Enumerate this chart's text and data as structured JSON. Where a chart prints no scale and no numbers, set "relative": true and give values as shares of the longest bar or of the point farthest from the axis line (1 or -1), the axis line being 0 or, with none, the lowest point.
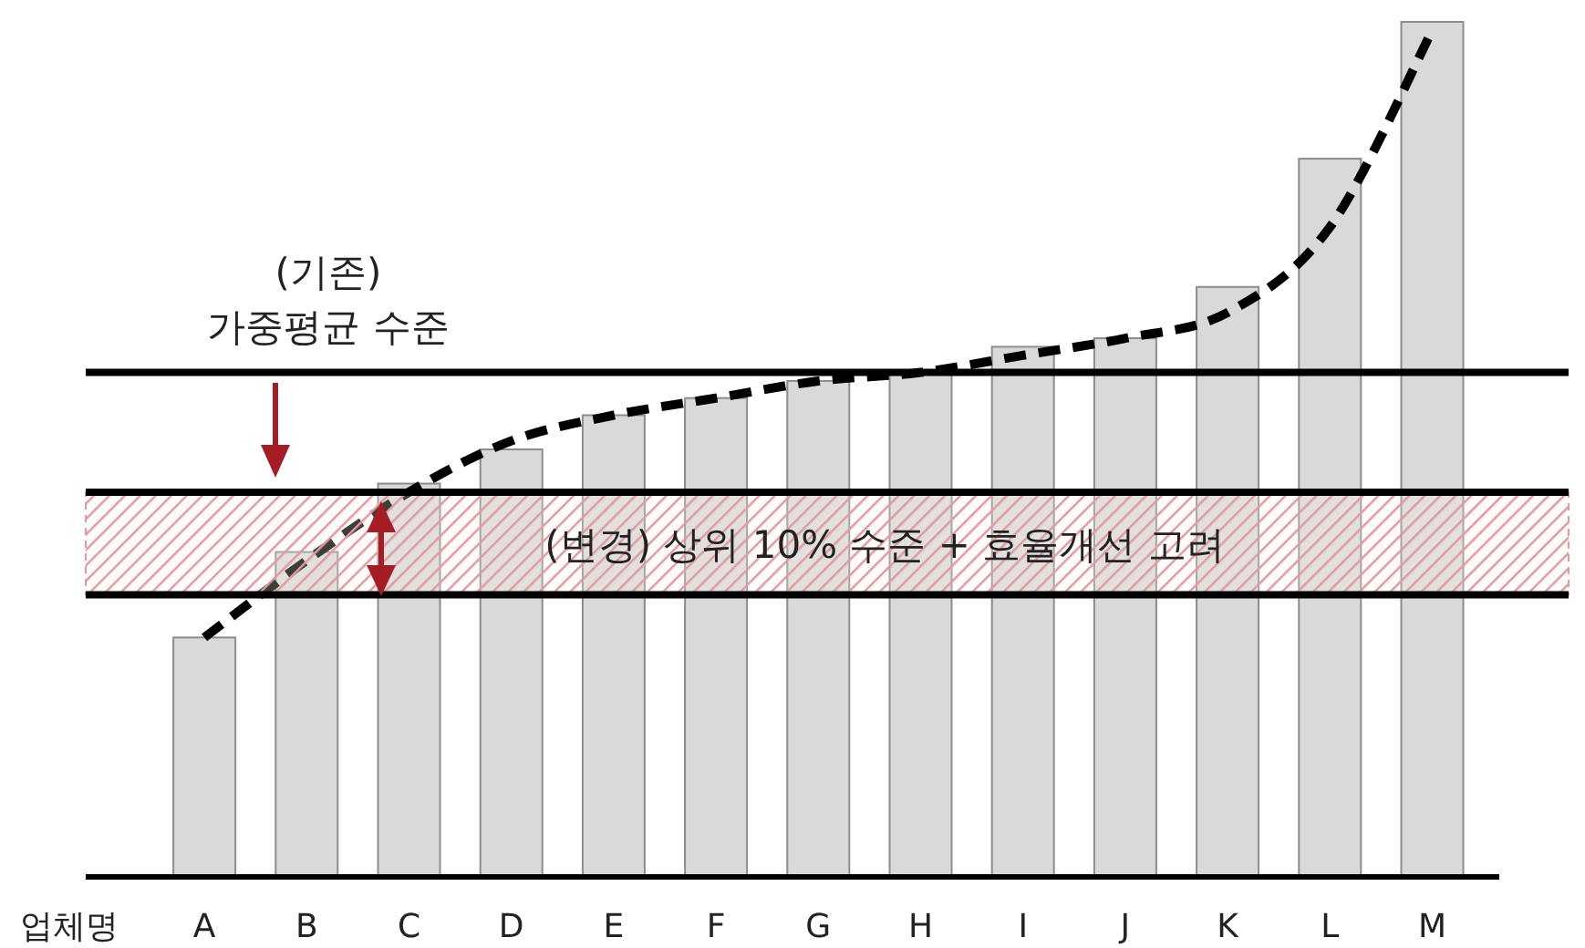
{
  "chart_data": {
    "type": "bar",
    "xlabel": "업체명",
    "categories": [
      "A",
      "B",
      "C",
      "D",
      "E",
      "F",
      "G",
      "H",
      "I",
      "J",
      "K",
      "L",
      "M"
    ],
    "relative": true,
    "series": [
      {
        "color": "#d9d9d9",
        "values": [
          0.28,
          0.38,
          0.46,
          0.5,
          0.54,
          0.56,
          0.58,
          0.59,
          0.62,
          0.63,
          0.69,
          0.84,
          1.0
        ]
      },
      {
        "type": "line",
        "color": "#000000",
        "line_style": "dashed",
        "values": [
          0.28,
          0.37,
          0.45,
          0.51,
          0.54,
          0.56,
          0.58,
          0.59,
          0.61,
          0.63,
          0.66,
          0.76,
          0.99
        ]
      }
    ],
    "ref_lines": [
      {
        "axis": "y",
        "value": 0.59,
        "label": "(기존)\n가중평균 수준",
        "color": "#000000"
      },
      {
        "axis": "y",
        "value": 0.45,
        "color": "#000000"
      },
      {
        "axis": "y",
        "value": 0.33,
        "color": "#000000"
      }
    ],
    "bands": [
      {
        "axis": "y",
        "from": 0.33,
        "to": 0.45,
        "label": "(변경) 상위 10% 수준 + 효율개선 고려",
        "color": "#e39a9a"
      }
    ]
  }
}
